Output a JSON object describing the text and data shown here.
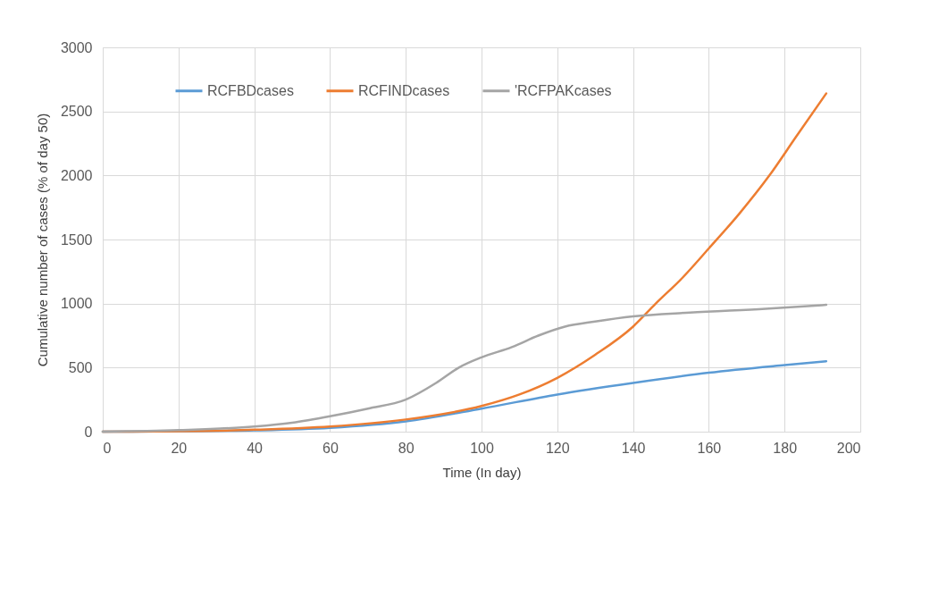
{
  "chart_data": {
    "type": "line",
    "xlabel": "Time (In day)",
    "ylabel": "Cumulative number of cases (% of day 50)",
    "xlim": [
      0,
      200
    ],
    "xticks": [
      0,
      20,
      40,
      60,
      80,
      100,
      120,
      140,
      160,
      180,
      200
    ],
    "ylim": [
      0,
      3000
    ],
    "yticks": [
      0,
      500,
      1000,
      1500,
      2000,
      2500,
      3000
    ],
    "grid": true,
    "legend": "top",
    "marker": "none",
    "line_style": "solid",
    "series": [
      {
        "name": "RCFBDcases",
        "color": "#5b9bd5",
        "x": [
          0,
          20,
          40,
          60,
          80,
          100,
          120,
          140,
          160,
          180,
          191
        ],
        "values": [
          0,
          3,
          10,
          30,
          80,
          180,
          290,
          380,
          460,
          520,
          550
        ]
      },
      {
        "name": "RCFINDcases",
        "color": "#ed7d31",
        "x": [
          0,
          20,
          40,
          60,
          80,
          100,
          110,
          120,
          130,
          140,
          146,
          153,
          160,
          168,
          176,
          183,
          191
        ],
        "values": [
          0,
          3,
          15,
          40,
          95,
          200,
          290,
          420,
          600,
          820,
          1000,
          1200,
          1430,
          1700,
          2000,
          2300,
          2640
        ]
      },
      {
        "name": "'RCFPAKcases",
        "color": "#a5a5a5",
        "x": [
          0,
          20,
          40,
          50,
          60,
          70,
          80,
          88,
          94,
          100,
          108,
          115,
          122,
          130,
          140,
          155,
          175,
          191
        ],
        "values": [
          0,
          12,
          40,
          70,
          120,
          180,
          250,
          380,
          500,
          580,
          660,
          750,
          820,
          860,
          900,
          930,
          960,
          990
        ]
      }
    ]
  }
}
